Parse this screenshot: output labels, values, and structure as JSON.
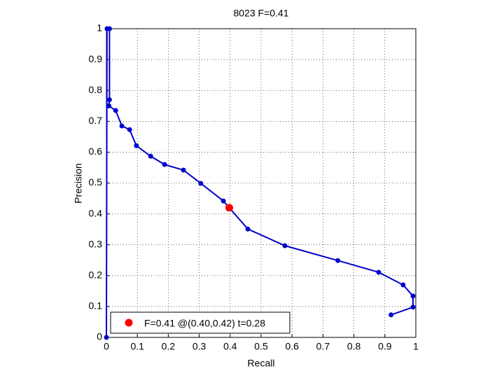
{
  "chart_data": {
    "type": "line",
    "title": "8023 F=0.41",
    "xlabel": "Recall",
    "ylabel": "Precision",
    "x": [
      0.92,
      0.991,
      0.991,
      0.959,
      0.88,
      0.748,
      0.577,
      0.457,
      0.378,
      0.305,
      0.249,
      0.188,
      0.143,
      0.097,
      0.075,
      0.05,
      0.03,
      0.008,
      0.01,
      0.01,
      0.002,
      0
    ],
    "series": [
      {
        "color": "#0000cc",
        "values": [
          0.073,
          0.098,
          0.134,
          0.17,
          0.211,
          0.249,
          0.297,
          0.351,
          0.442,
          0.499,
          0.542,
          0.56,
          0.587,
          0.621,
          0.673,
          0.685,
          0.735,
          0.75,
          0.77,
          1,
          1,
          0
        ]
      }
    ],
    "highlight": {
      "name": "F=0.41 @(0.40,0.42) t=0.28",
      "x": 0.397,
      "y": 0.42,
      "color": "#ff0000"
    },
    "xlim": [
      0,
      1
    ],
    "ylim": [
      0,
      1
    ],
    "xticks": [
      0,
      0.1,
      0.2,
      0.3,
      0.4,
      0.5,
      0.6,
      0.7,
      0.8,
      0.9,
      1
    ],
    "yticks": [
      0,
      0.1,
      0.2,
      0.3,
      0.4,
      0.5,
      0.6,
      0.7,
      0.8,
      0.9,
      1
    ],
    "grid": true,
    "legend": "southwest"
  }
}
